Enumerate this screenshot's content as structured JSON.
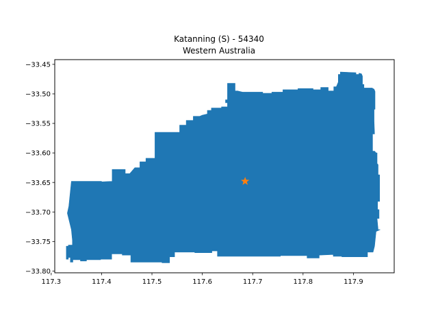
{
  "chart_data": {
    "type": "map",
    "title": "Katanning (S) - 54340",
    "subtitle": "Western Australia",
    "xlim": [
      117.307,
      117.981
    ],
    "ylim": [
      -33.803,
      -33.442
    ],
    "x_ticks": [
      117.3,
      117.4,
      117.5,
      117.6,
      117.7,
      117.8,
      117.9
    ],
    "x_tick_labels": [
      "117.3",
      "117.4",
      "117.5",
      "117.6",
      "117.7",
      "117.8",
      "117.9"
    ],
    "y_ticks": [
      -33.45,
      -33.5,
      -33.55,
      -33.6,
      -33.65,
      -33.7,
      -33.75,
      -33.8
    ],
    "y_tick_labels": [
      "−33.45",
      "−33.50",
      "−33.55",
      "−33.60",
      "−33.65",
      "−33.70",
      "−33.75",
      "−33.80"
    ],
    "region": {
      "color": "#1f77b4",
      "boundary": [
        [
          117.335,
          -33.69
        ],
        [
          117.34,
          -33.648
        ],
        [
          117.4,
          -33.648
        ],
        [
          117.4,
          -33.649
        ],
        [
          117.421,
          -33.648
        ],
        [
          117.421,
          -33.628
        ],
        [
          117.447,
          -33.628
        ],
        [
          117.447,
          -33.635
        ],
        [
          117.456,
          -33.635
        ],
        [
          117.466,
          -33.625
        ],
        [
          117.476,
          -33.625
        ],
        [
          117.476,
          -33.615
        ],
        [
          117.488,
          -33.615
        ],
        [
          117.488,
          -33.609
        ],
        [
          117.506,
          -33.609
        ],
        [
          117.506,
          -33.565
        ],
        [
          117.555,
          -33.565
        ],
        [
          117.555,
          -33.553
        ],
        [
          117.568,
          -33.553
        ],
        [
          117.568,
          -33.545
        ],
        [
          117.582,
          -33.545
        ],
        [
          117.582,
          -33.538
        ],
        [
          117.595,
          -33.538
        ],
        [
          117.6,
          -33.536
        ],
        [
          117.61,
          -33.534
        ],
        [
          117.61,
          -33.528
        ],
        [
          117.618,
          -33.528
        ],
        [
          117.618,
          -33.524
        ],
        [
          117.638,
          -33.524
        ],
        [
          117.638,
          -33.522
        ],
        [
          117.65,
          -33.522
        ],
        [
          117.65,
          -33.515
        ],
        [
          117.646,
          -33.515
        ],
        [
          117.646,
          -33.51
        ],
        [
          117.65,
          -33.51
        ],
        [
          117.65,
          -33.482
        ],
        [
          117.665,
          -33.482
        ],
        [
          117.665,
          -33.495
        ],
        [
          117.67,
          -33.495
        ],
        [
          117.68,
          -33.497
        ],
        [
          117.72,
          -33.497
        ],
        [
          117.72,
          -33.499
        ],
        [
          117.738,
          -33.499
        ],
        [
          117.738,
          -33.497
        ],
        [
          117.76,
          -33.497
        ],
        [
          117.76,
          -33.493
        ],
        [
          117.79,
          -33.493
        ],
        [
          117.79,
          -33.491
        ],
        [
          117.82,
          -33.491
        ],
        [
          117.82,
          -33.493
        ],
        [
          117.835,
          -33.493
        ],
        [
          117.835,
          -33.489
        ],
        [
          117.85,
          -33.489
        ],
        [
          117.85,
          -33.495
        ],
        [
          117.861,
          -33.495
        ],
        [
          117.861,
          -33.488
        ],
        [
          117.866,
          -33.488
        ],
        [
          117.87,
          -33.48
        ],
        [
          117.87,
          -33.467
        ],
        [
          117.874,
          -33.467
        ],
        [
          117.874,
          -33.463
        ],
        [
          117.905,
          -33.464
        ],
        [
          117.905,
          -33.467
        ],
        [
          117.911,
          -33.467
        ],
        [
          117.911,
          -33.465
        ],
        [
          117.916,
          -33.466
        ],
        [
          117.918,
          -33.47
        ],
        [
          117.918,
          -33.484
        ],
        [
          117.921,
          -33.484
        ],
        [
          117.921,
          -33.49
        ],
        [
          117.937,
          -33.49
        ],
        [
          117.941,
          -33.492
        ],
        [
          117.943,
          -33.496
        ],
        [
          117.943,
          -33.526
        ],
        [
          117.941,
          -33.526
        ],
        [
          117.941,
          -33.546
        ],
        [
          117.942,
          -33.568
        ],
        [
          117.938,
          -33.568
        ],
        [
          117.938,
          -33.597
        ],
        [
          117.942,
          -33.597
        ],
        [
          117.945,
          -33.6
        ],
        [
          117.947,
          -33.6
        ],
        [
          117.947,
          -33.618
        ],
        [
          117.949,
          -33.62
        ],
        [
          117.949,
          -33.637
        ],
        [
          117.952,
          -33.637
        ],
        [
          117.952,
          -33.682
        ],
        [
          117.948,
          -33.682
        ],
        [
          117.948,
          -33.696
        ],
        [
          117.951,
          -33.696
        ],
        [
          117.951,
          -33.711
        ],
        [
          117.947,
          -33.711
        ],
        [
          117.949,
          -33.73
        ],
        [
          117.953,
          -33.73
        ],
        [
          117.945,
          -33.733
        ],
        [
          117.942,
          -33.758
        ],
        [
          117.939,
          -33.768
        ],
        [
          117.928,
          -33.768
        ],
        [
          117.928,
          -33.776
        ],
        [
          117.877,
          -33.776
        ],
        [
          117.877,
          -33.775
        ],
        [
          117.86,
          -33.775
        ],
        [
          117.86,
          -33.772
        ],
        [
          117.832,
          -33.773
        ],
        [
          117.832,
          -33.778
        ],
        [
          117.808,
          -33.778
        ],
        [
          117.808,
          -33.774
        ],
        [
          117.755,
          -33.774
        ],
        [
          117.755,
          -33.775
        ],
        [
          117.63,
          -33.775
        ],
        [
          117.63,
          -33.766
        ],
        [
          117.619,
          -33.766
        ],
        [
          117.619,
          -33.769
        ],
        [
          117.585,
          -33.769
        ],
        [
          117.585,
          -33.768
        ],
        [
          117.545,
          -33.768
        ],
        [
          117.545,
          -33.776
        ],
        [
          117.535,
          -33.776
        ],
        [
          117.535,
          -33.786
        ],
        [
          117.52,
          -33.786
        ],
        [
          117.52,
          -33.785
        ],
        [
          117.458,
          -33.785
        ],
        [
          117.458,
          -33.773
        ],
        [
          117.441,
          -33.773
        ],
        [
          117.441,
          -33.771
        ],
        [
          117.42,
          -33.771
        ],
        [
          117.42,
          -33.78
        ],
        [
          117.398,
          -33.78
        ],
        [
          117.398,
          -33.781
        ],
        [
          117.37,
          -33.781
        ],
        [
          117.37,
          -33.783
        ],
        [
          117.358,
          -33.783
        ],
        [
          117.358,
          -33.781
        ],
        [
          117.343,
          -33.781
        ],
        [
          117.343,
          -33.785
        ],
        [
          117.338,
          -33.785
        ],
        [
          117.338,
          -33.777
        ],
        [
          117.334,
          -33.777
        ],
        [
          117.334,
          -33.78
        ],
        [
          117.33,
          -33.78
        ],
        [
          117.33,
          -33.77
        ],
        [
          117.33,
          -33.758
        ],
        [
          117.334,
          -33.758
        ],
        [
          117.334,
          -33.756
        ],
        [
          117.342,
          -33.756
        ],
        [
          117.342,
          -33.748
        ],
        [
          117.34,
          -33.73
        ],
        [
          117.332,
          -33.702
        ],
        [
          117.335,
          -33.69
        ]
      ]
    },
    "centroid_marker": {
      "lon": 117.685,
      "lat": -33.648,
      "color": "#ff7f0e",
      "shape": "star"
    }
  }
}
